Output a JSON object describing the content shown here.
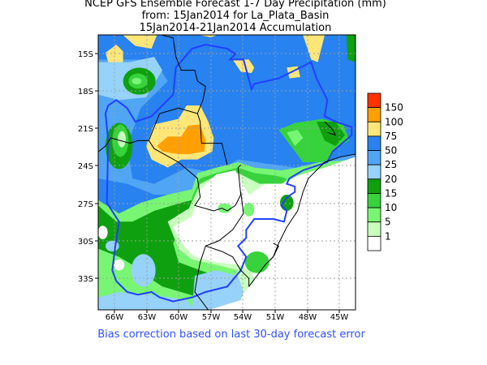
{
  "title": {
    "line1": "NCEP GFS Ensemble Forecast 1-7 Day Precipitation (mm)",
    "line2": "from: 15Jan2014   for La_Plata_Basin",
    "line3": "15Jan2014-21Jan2014 Accumulation"
  },
  "map": {
    "lat_labels": [
      "15S",
      "18S",
      "21S",
      "24S",
      "27S",
      "30S",
      "33S"
    ],
    "lon_labels": [
      "66W",
      "63W",
      "60W",
      "57W",
      "54W",
      "51W",
      "48W",
      "45W"
    ]
  },
  "legend": {
    "labels": [
      "150",
      "100",
      "75",
      "50",
      "25",
      "20",
      "15",
      "10",
      "5",
      "1"
    ],
    "colors": [
      "#ff3200",
      "#ffa000",
      "#ffe678",
      "#2882f0",
      "#50a5f5",
      "#96d2fa",
      "#0fa00f",
      "#37d23c",
      "#78f573",
      "#c8ffbe",
      "#ffffff"
    ]
  },
  "footnote": "Bias correction based on last 30-day forecast error"
}
